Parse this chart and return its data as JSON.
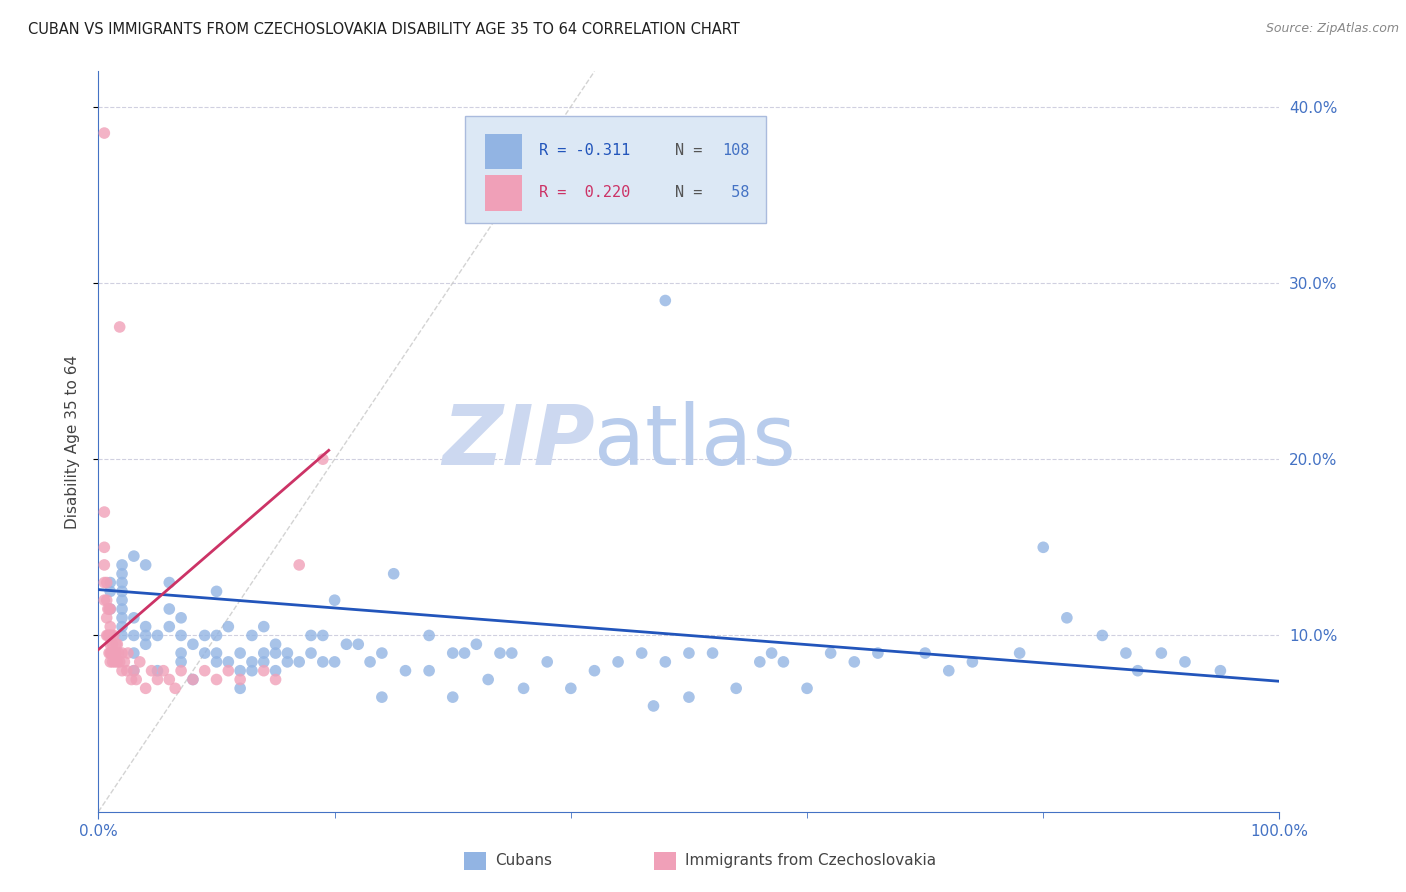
{
  "title": "CUBAN VS IMMIGRANTS FROM CZECHOSLOVAKIA DISABILITY AGE 35 TO 64 CORRELATION CHART",
  "source": "Source: ZipAtlas.com",
  "ylabel": "Disability Age 35 to 64",
  "xlim": [
    0,
    1.0
  ],
  "ylim": [
    0,
    0.42
  ],
  "yticks": [
    0.1,
    0.2,
    0.3,
    0.4
  ],
  "xticks": [
    0.0,
    1.0
  ],
  "xtick_labels": [
    "0.0%",
    "100.0%"
  ],
  "ytick_labels": [
    "10.0%",
    "20.0%",
    "30.0%",
    "40.0%"
  ],
  "blue_R": -0.311,
  "blue_N": 108,
  "pink_R": 0.22,
  "pink_N": 58,
  "blue_color": "#92b4e3",
  "pink_color": "#f0a0b8",
  "blue_line_color": "#2255bb",
  "pink_line_color": "#cc3366",
  "diag_color": "#c8c8c8",
  "grid_color": "#d0d0e0",
  "watermark_zip_color": "#ccd8f0",
  "watermark_atlas_color": "#b8ccec",
  "legend_box_color": "#dce8f5",
  "legend_border_color": "#aabbdd",
  "title_color": "#202020",
  "axis_color": "#4472c4",
  "source_color": "#888888",
  "blue_scatter_x": [
    0.01,
    0.01,
    0.01,
    0.02,
    0.02,
    0.02,
    0.02,
    0.02,
    0.02,
    0.02,
    0.02,
    0.02,
    0.03,
    0.03,
    0.03,
    0.03,
    0.03,
    0.04,
    0.04,
    0.04,
    0.04,
    0.05,
    0.05,
    0.06,
    0.06,
    0.06,
    0.07,
    0.07,
    0.07,
    0.07,
    0.08,
    0.08,
    0.09,
    0.09,
    0.1,
    0.1,
    0.1,
    0.1,
    0.11,
    0.11,
    0.12,
    0.12,
    0.12,
    0.13,
    0.13,
    0.13,
    0.14,
    0.14,
    0.14,
    0.15,
    0.15,
    0.15,
    0.16,
    0.16,
    0.17,
    0.18,
    0.18,
    0.19,
    0.19,
    0.2,
    0.2,
    0.21,
    0.22,
    0.23,
    0.24,
    0.24,
    0.25,
    0.26,
    0.28,
    0.28,
    0.3,
    0.3,
    0.31,
    0.32,
    0.33,
    0.34,
    0.35,
    0.36,
    0.38,
    0.4,
    0.42,
    0.44,
    0.46,
    0.47,
    0.48,
    0.5,
    0.5,
    0.52,
    0.54,
    0.56,
    0.57,
    0.58,
    0.6,
    0.62,
    0.64,
    0.66,
    0.7,
    0.72,
    0.74,
    0.78,
    0.8,
    0.82,
    0.85,
    0.87,
    0.88,
    0.9,
    0.92,
    0.95,
    0.48
  ],
  "blue_scatter_y": [
    0.115,
    0.125,
    0.13,
    0.1,
    0.105,
    0.11,
    0.115,
    0.12,
    0.125,
    0.13,
    0.135,
    0.14,
    0.08,
    0.09,
    0.1,
    0.11,
    0.145,
    0.095,
    0.1,
    0.105,
    0.14,
    0.08,
    0.1,
    0.105,
    0.115,
    0.13,
    0.085,
    0.09,
    0.1,
    0.11,
    0.075,
    0.095,
    0.09,
    0.1,
    0.085,
    0.09,
    0.1,
    0.125,
    0.085,
    0.105,
    0.07,
    0.08,
    0.09,
    0.08,
    0.085,
    0.1,
    0.085,
    0.09,
    0.105,
    0.08,
    0.09,
    0.095,
    0.085,
    0.09,
    0.085,
    0.1,
    0.09,
    0.085,
    0.1,
    0.085,
    0.12,
    0.095,
    0.095,
    0.085,
    0.065,
    0.09,
    0.135,
    0.08,
    0.08,
    0.1,
    0.065,
    0.09,
    0.09,
    0.095,
    0.075,
    0.09,
    0.09,
    0.07,
    0.085,
    0.07,
    0.08,
    0.085,
    0.09,
    0.06,
    0.085,
    0.065,
    0.09,
    0.09,
    0.07,
    0.085,
    0.09,
    0.085,
    0.07,
    0.09,
    0.085,
    0.09,
    0.09,
    0.08,
    0.085,
    0.09,
    0.15,
    0.11,
    0.1,
    0.09,
    0.08,
    0.09,
    0.085,
    0.08,
    0.29
  ],
  "pink_scatter_x": [
    0.005,
    0.005,
    0.005,
    0.005,
    0.005,
    0.007,
    0.007,
    0.007,
    0.007,
    0.008,
    0.008,
    0.009,
    0.009,
    0.009,
    0.01,
    0.01,
    0.01,
    0.01,
    0.01,
    0.01,
    0.011,
    0.011,
    0.012,
    0.012,
    0.013,
    0.013,
    0.014,
    0.015,
    0.015,
    0.016,
    0.016,
    0.017,
    0.018,
    0.02,
    0.02,
    0.022,
    0.024,
    0.025,
    0.028,
    0.03,
    0.032,
    0.035,
    0.04,
    0.045,
    0.05,
    0.055,
    0.06,
    0.065,
    0.07,
    0.08,
    0.09,
    0.1,
    0.11,
    0.12,
    0.14,
    0.15,
    0.17,
    0.19,
    0.005,
    0.018
  ],
  "pink_scatter_y": [
    0.12,
    0.13,
    0.14,
    0.15,
    0.17,
    0.1,
    0.11,
    0.12,
    0.13,
    0.1,
    0.115,
    0.09,
    0.1,
    0.115,
    0.085,
    0.09,
    0.095,
    0.1,
    0.105,
    0.115,
    0.09,
    0.1,
    0.085,
    0.095,
    0.09,
    0.1,
    0.085,
    0.09,
    0.095,
    0.085,
    0.095,
    0.09,
    0.085,
    0.08,
    0.09,
    0.085,
    0.08,
    0.09,
    0.075,
    0.08,
    0.075,
    0.085,
    0.07,
    0.08,
    0.075,
    0.08,
    0.075,
    0.07,
    0.08,
    0.075,
    0.08,
    0.075,
    0.08,
    0.075,
    0.08,
    0.075,
    0.14,
    0.2,
    0.385,
    0.275
  ],
  "blue_trend": [
    0.0,
    0.126,
    1.0,
    0.074
  ],
  "pink_trend": [
    0.0,
    0.092,
    0.195,
    0.205
  ],
  "figsize": [
    14.06,
    8.92
  ],
  "dpi": 100
}
